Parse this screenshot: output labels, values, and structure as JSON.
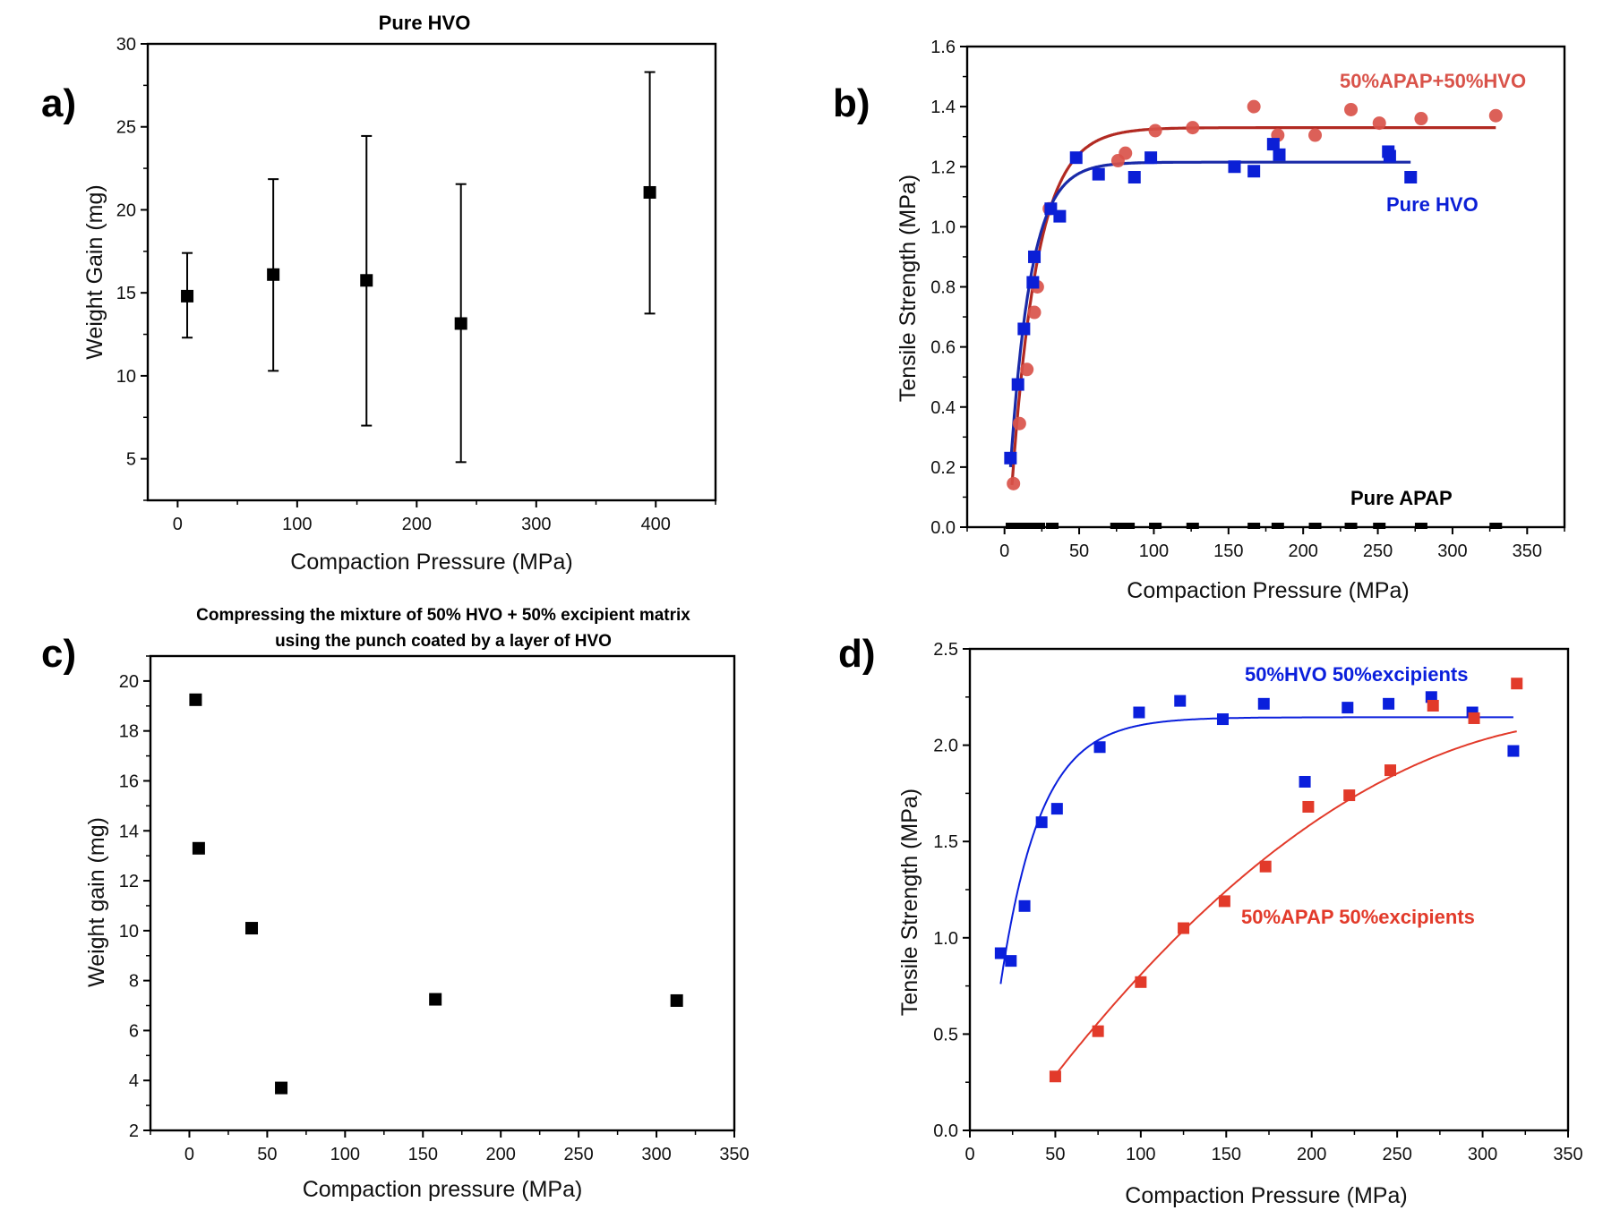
{
  "chart_data": [
    {
      "panel_label": "a)",
      "type": "scatter",
      "title": "Pure HVO",
      "xlabel": "Compaction Pressure (MPa)",
      "ylabel": "Weight Gain (mg)",
      "xlim": [
        -25,
        450
      ],
      "ylim": [
        2.5,
        30
      ],
      "xticks": [
        0,
        100,
        200,
        300,
        400
      ],
      "yticks": [
        5,
        10,
        15,
        20,
        25,
        30
      ],
      "grid": false,
      "series": [
        {
          "name": "Pure HVO",
          "color": "#000000",
          "marker": "square",
          "x": [
            8,
            80,
            158,
            237,
            395
          ],
          "y": [
            14.8,
            16.1,
            15.75,
            13.15,
            21.05
          ],
          "err_low": [
            12.3,
            10.3,
            7.0,
            4.8,
            13.75
          ],
          "err_high": [
            17.4,
            21.85,
            24.45,
            21.55,
            28.3
          ]
        }
      ]
    },
    {
      "panel_label": "b)",
      "type": "scatter",
      "title": "",
      "xlabel": "Compaction Pressure (MPa)",
      "ylabel": "Tensile Strength (MPa)",
      "xlim": [
        -25,
        375
      ],
      "ylim": [
        0,
        1.6
      ],
      "xticks": [
        0,
        50,
        100,
        150,
        200,
        250,
        300,
        350
      ],
      "yticks": [
        0.0,
        0.2,
        0.4,
        0.6,
        0.8,
        1.0,
        1.2,
        1.4,
        1.6
      ],
      "grid": false,
      "series": [
        {
          "name": "50%APAP+50%HVO",
          "color": "#d9534a",
          "fit_color": "#b22a22",
          "marker": "circle",
          "x": [
            6,
            10,
            15,
            20,
            22,
            30,
            76,
            81,
            101,
            126,
            167,
            183,
            208,
            232,
            251,
            279,
            329
          ],
          "y": [
            0.145,
            0.345,
            0.525,
            0.715,
            0.8,
            1.06,
            1.22,
            1.245,
            1.32,
            1.33,
            1.4,
            1.305,
            1.305,
            1.39,
            1.345,
            1.36,
            1.37
          ],
          "fit": {
            "model": "exponential-rise",
            "ymax": 1.33,
            "x0": 5,
            "k": 0.058,
            "y0": 0.14,
            "x_end": 329
          }
        },
        {
          "name": "Pure HVO",
          "color": "#0b1fd6",
          "fit_color": "#1a2aa8",
          "marker": "square",
          "x": [
            4,
            9,
            13,
            19,
            20,
            31,
            37,
            48,
            63,
            87,
            98,
            154,
            167,
            180,
            184,
            257,
            258,
            272
          ],
          "y": [
            0.23,
            0.475,
            0.66,
            0.815,
            0.9,
            1.06,
            1.035,
            1.23,
            1.175,
            1.165,
            1.23,
            1.2,
            1.185,
            1.275,
            1.24,
            1.25,
            1.235,
            1.165
          ],
          "fit": {
            "model": "exponential-rise",
            "ymax": 1.215,
            "x0": 4,
            "k": 0.072,
            "y0": 0.2,
            "x_end": 272
          }
        },
        {
          "name": "Pure APAP",
          "color": "#000000",
          "marker": "square",
          "x": [
            5,
            8,
            11,
            14,
            17,
            20,
            23,
            32,
            75,
            79,
            83,
            101,
            126,
            167,
            183,
            208,
            232,
            251,
            279,
            329
          ],
          "y": [
            0,
            0,
            0,
            0,
            0,
            0,
            0,
            0,
            0,
            0,
            0,
            0,
            0,
            0,
            0,
            0,
            0,
            0,
            0,
            0
          ]
        }
      ],
      "annotations": [
        "50%APAP+50%HVO",
        "Pure HVO",
        "Pure APAP"
      ]
    },
    {
      "panel_label": "c)",
      "type": "scatter",
      "title": "Compressing the mixture of 50% HVO + 50% excipient matrix",
      "subtitle": "using the punch coated by a layer of HVO",
      "xlabel": "Compaction pressure (MPa)",
      "ylabel": "Weight gain (mg)",
      "xlim": [
        -25,
        350
      ],
      "ylim": [
        2,
        21
      ],
      "xticks": [
        0,
        50,
        100,
        150,
        200,
        250,
        300,
        350
      ],
      "yticks": [
        2,
        4,
        6,
        8,
        10,
        12,
        14,
        16,
        18,
        20
      ],
      "grid": false,
      "series": [
        {
          "name": "50% HVO + 50% excipient",
          "color": "#000000",
          "marker": "square",
          "x": [
            4,
            6,
            40,
            59,
            158,
            313
          ],
          "y": [
            19.25,
            13.3,
            10.1,
            3.7,
            7.25,
            7.2
          ]
        }
      ]
    },
    {
      "panel_label": "d)",
      "type": "scatter",
      "title": "",
      "xlabel": "Compaction Pressure (MPa)",
      "ylabel": "Tensile Strength (MPa)",
      "xlim": [
        0,
        350
      ],
      "ylim": [
        0,
        2.5
      ],
      "xticks": [
        0,
        50,
        100,
        150,
        200,
        250,
        300,
        350
      ],
      "yticks": [
        0.0,
        0.5,
        1.0,
        1.5,
        2.0,
        2.5
      ],
      "grid": false,
      "series": [
        {
          "name": "50%HVO 50%excipients",
          "color": "#0a1fdc",
          "marker": "square",
          "x": [
            18,
            24,
            32,
            42,
            51,
            76,
            99,
            123,
            148,
            172,
            196,
            221,
            245,
            270,
            294,
            318
          ],
          "y": [
            0.92,
            0.88,
            1.165,
            1.6,
            1.67,
            1.99,
            2.17,
            2.23,
            2.135,
            2.215,
            1.81,
            2.195,
            2.215,
            2.25,
            2.17,
            1.97
          ],
          "fit": {
            "model": "exponential-rise",
            "ymax": 2.145,
            "x0": 18,
            "k": 0.043,
            "y0": 0.76,
            "x_end": 318
          }
        },
        {
          "name": "50%APAP 50%excipients",
          "color": "#e23a2a",
          "marker": "square",
          "x": [
            50,
            75,
            100,
            125,
            149,
            173,
            198,
            222,
            246,
            271,
            295,
            320
          ],
          "y": [
            0.28,
            0.515,
            0.77,
            1.05,
            1.19,
            1.37,
            1.68,
            1.74,
            1.87,
            2.205,
            2.14,
            2.32
          ],
          "fit": {
            "model": "polynomial",
            "coef": [
              -0.322,
              0.01305,
              -1.74e-05
            ],
            "x_start": 50,
            "x_end": 320
          }
        }
      ],
      "annotations": [
        "50%HVO 50%excipients",
        "50%APAP 50%excipients"
      ]
    }
  ]
}
